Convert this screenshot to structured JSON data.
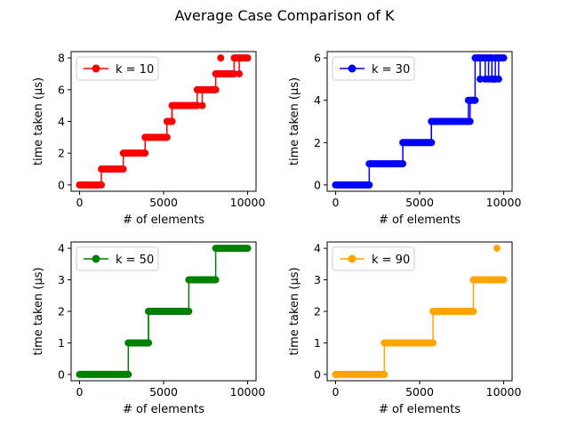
{
  "figure": {
    "title": "Average Case Comparison of K"
  },
  "chart_data": [
    {
      "type": "line",
      "title": "",
      "xlabel": "# of elements",
      "ylabel": "time taken (μs)",
      "xlim": [
        -500,
        10500
      ],
      "ylim": [
        -0.4,
        8.4
      ],
      "xticks": [
        0,
        5000,
        10000
      ],
      "yticks": [
        0,
        2,
        4,
        6,
        8
      ],
      "legend_position": "top-left",
      "series": [
        {
          "name": "k = 10",
          "color": "#ff0000",
          "marker": "circle",
          "steps": [
            [
              0,
              0
            ],
            [
              1300,
              1
            ],
            [
              2600,
              2
            ],
            [
              3900,
              3
            ],
            [
              5200,
              4
            ],
            [
              5500,
              5
            ],
            [
              7000,
              6
            ],
            [
              8100,
              7
            ],
            [
              9200,
              8
            ]
          ],
          "x_end": 10000,
          "spikes": [
            [
              1500,
              1
            ],
            [
              2700,
              2
            ],
            [
              4000,
              3
            ],
            [
              5500,
              4
            ],
            [
              7300,
              5
            ],
            [
              8600,
              7
            ],
            [
              9100,
              7
            ],
            [
              9500,
              7
            ]
          ],
          "outliers": [
            [
              8400,
              8
            ]
          ]
        },
        {
          "name": "k = 30",
          "color": "#0000ff",
          "marker": "circle",
          "steps": [
            [
              0,
              0
            ],
            [
              2000,
              1
            ],
            [
              4000,
              2
            ],
            [
              5700,
              3
            ],
            [
              7900,
              4
            ],
            [
              8300,
              6
            ],
            [
              9300,
              5
            ],
            [
              9500,
              6
            ]
          ],
          "x_end": 10000,
          "spikes": [
            [
              5700,
              2
            ],
            [
              8000,
              3
            ],
            [
              8600,
              5
            ],
            [
              8900,
              5
            ],
            [
              9100,
              5
            ],
            [
              9300,
              6
            ],
            [
              9700,
              5
            ]
          ],
          "outliers": []
        },
        {
          "name": "k = 50",
          "color": "#008000",
          "marker": "circle",
          "steps": [
            [
              0,
              0
            ],
            [
              2900,
              1
            ],
            [
              4100,
              2
            ],
            [
              6500,
              3
            ],
            [
              8100,
              4
            ]
          ],
          "x_end": 10000,
          "spikes": [
            [
              4100,
              1
            ]
          ],
          "outliers": []
        },
        {
          "name": "k = 90",
          "color": "#ffa500",
          "marker": "circle",
          "steps": [
            [
              0,
              0
            ],
            [
              2900,
              1
            ],
            [
              5800,
              2
            ],
            [
              8200,
              3
            ]
          ],
          "x_end": 10000,
          "spikes": [
            [
              9600,
              3
            ]
          ],
          "outliers": [
            [
              9600,
              4
            ]
          ]
        }
      ]
    },
    {
      "type": "line",
      "xlabel": "# of elements",
      "ylabel": "time taken (μs)",
      "xlim": [
        -500,
        10500
      ],
      "ylim": [
        -0.3,
        6.3
      ],
      "xticks": [
        0,
        5000,
        10000
      ],
      "yticks": [
        0,
        2,
        4,
        6
      ]
    },
    {
      "type": "line",
      "xlabel": "# of elements",
      "ylabel": "time taken (μs)",
      "xlim": [
        -500,
        10500
      ],
      "ylim": [
        -0.2,
        4.2
      ],
      "xticks": [
        0,
        5000,
        10000
      ],
      "yticks": [
        0,
        1,
        2,
        3,
        4
      ]
    },
    {
      "type": "line",
      "xlabel": "# of elements",
      "ylabel": "time taken (μs)",
      "xlim": [
        -500,
        10500
      ],
      "ylim": [
        -0.2,
        4.2
      ],
      "xticks": [
        0,
        5000,
        10000
      ],
      "yticks": [
        0,
        1,
        2,
        3,
        4
      ]
    }
  ]
}
